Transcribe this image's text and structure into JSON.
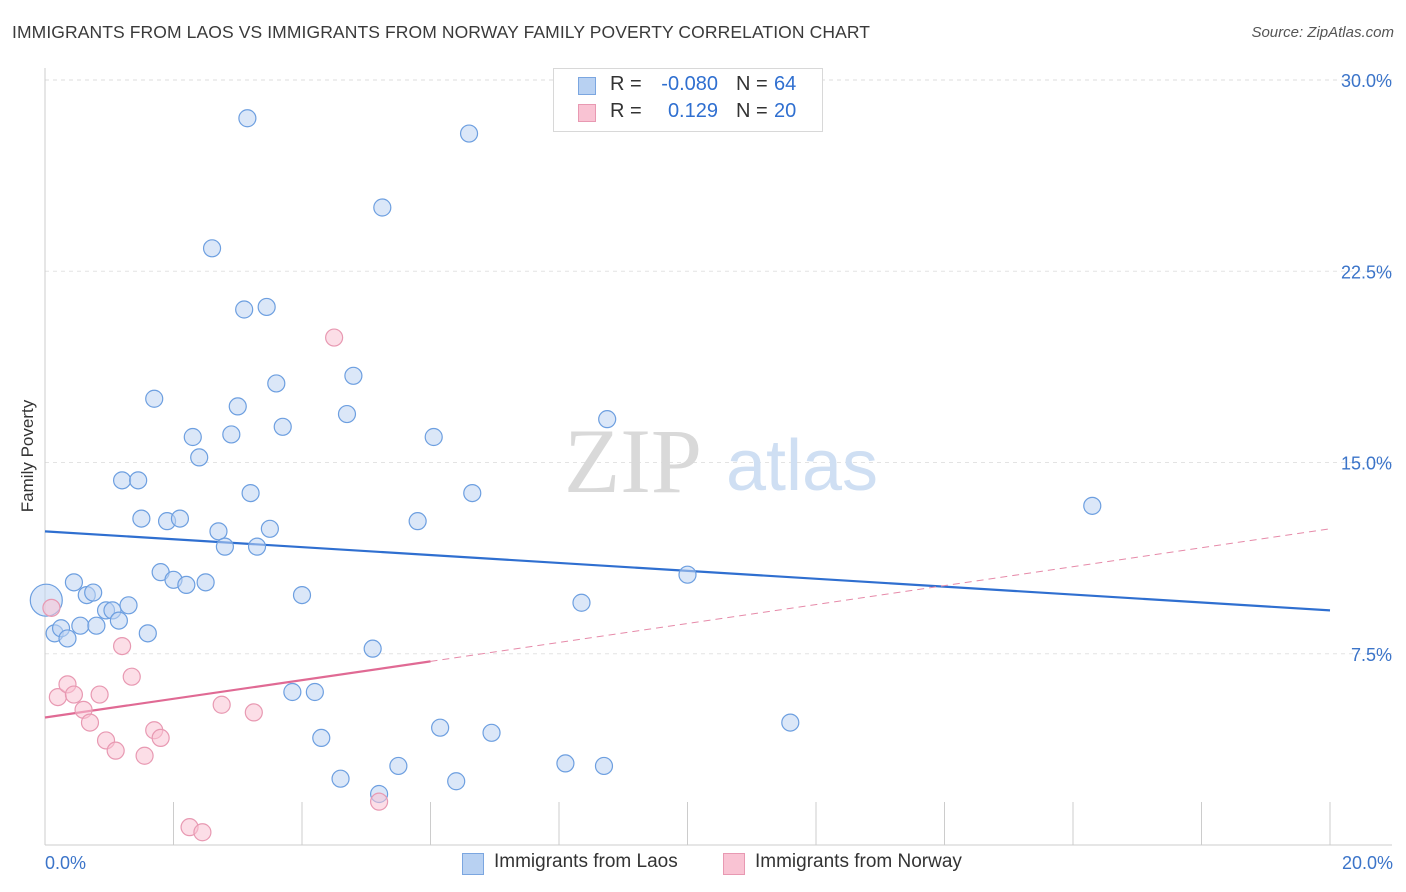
{
  "header": {
    "title": "IMMIGRANTS FROM LAOS VS IMMIGRANTS FROM NORWAY FAMILY POVERTY CORRELATION CHART",
    "source": "Source: ZipAtlas.com"
  },
  "watermark": {
    "zip": "ZIP",
    "atlas": "atlas"
  },
  "stats": [
    {
      "r_label": "R =",
      "r_value": "-0.080",
      "n_label": "N =",
      "n_value": "64",
      "color": "#b8d1f2",
      "border": "#7ba6e0"
    },
    {
      "r_label": "R =",
      "r_value": "0.129",
      "n_label": "N =",
      "n_value": "20",
      "color": "#f9c3d3",
      "border": "#e899b2"
    }
  ],
  "legend": [
    {
      "label": "Immigrants from Laos",
      "color": "#b8d1f2",
      "border": "#7ba6e0"
    },
    {
      "label": "Immigrants from Norway",
      "color": "#f9c3d3",
      "border": "#e899b2"
    }
  ],
  "chart_data": {
    "type": "scatter",
    "title": "IMMIGRANTS FROM LAOS VS IMMIGRANTS FROM NORWAY FAMILY POVERTY CORRELATION CHART",
    "xlabel": "",
    "ylabel": "Family Poverty",
    "xlim": [
      0,
      20
    ],
    "ylim": [
      0,
      30
    ],
    "x_tick_labels": [
      "0.0%",
      "20.0%"
    ],
    "y_ticks": [
      7.5,
      15.0,
      22.5,
      30.0
    ],
    "y_tick_labels": [
      "7.5%",
      "15.0%",
      "22.5%",
      "30.0%"
    ],
    "grid": true,
    "legend_position": "bottom",
    "series": [
      {
        "name": "Immigrants from Laos",
        "color": "#6d9fe0",
        "fill": "#bdd4f3",
        "trend": {
          "x": [
            0,
            20
          ],
          "y": [
            12.3,
            9.2
          ],
          "color": "#2f6fd0",
          "style": "solid"
        },
        "points": [
          [
            0.02,
            9.6,
            "big"
          ],
          [
            0.15,
            8.3
          ],
          [
            0.25,
            8.5
          ],
          [
            0.35,
            8.1
          ],
          [
            0.45,
            10.3
          ],
          [
            0.55,
            8.6
          ],
          [
            0.65,
            9.8
          ],
          [
            0.75,
            9.9
          ],
          [
            0.8,
            8.6
          ],
          [
            0.95,
            9.2
          ],
          [
            1.05,
            9.2
          ],
          [
            1.15,
            8.8
          ],
          [
            1.3,
            9.4
          ],
          [
            1.6,
            8.3
          ],
          [
            1.2,
            14.3
          ],
          [
            1.45,
            14.3
          ],
          [
            1.5,
            12.8
          ],
          [
            1.7,
            17.5
          ],
          [
            1.8,
            10.7
          ],
          [
            1.9,
            12.7
          ],
          [
            2.0,
            10.4
          ],
          [
            2.1,
            12.8
          ],
          [
            2.2,
            10.2
          ],
          [
            2.3,
            16.0
          ],
          [
            2.4,
            15.2
          ],
          [
            2.5,
            10.3
          ],
          [
            2.6,
            23.4
          ],
          [
            2.7,
            12.3
          ],
          [
            2.8,
            11.7
          ],
          [
            2.9,
            16.1
          ],
          [
            3.0,
            17.2
          ],
          [
            3.1,
            21.0
          ],
          [
            3.15,
            28.5
          ],
          [
            3.2,
            13.8
          ],
          [
            3.3,
            11.7
          ],
          [
            3.45,
            21.1
          ],
          [
            3.5,
            12.4
          ],
          [
            3.6,
            18.1
          ],
          [
            3.7,
            16.4
          ],
          [
            3.85,
            6.0
          ],
          [
            4.0,
            9.8
          ],
          [
            4.2,
            6.0
          ],
          [
            4.3,
            4.2
          ],
          [
            4.6,
            2.6
          ],
          [
            4.7,
            16.9
          ],
          [
            4.8,
            18.4
          ],
          [
            5.1,
            7.7
          ],
          [
            5.2,
            2.0
          ],
          [
            5.25,
            25.0
          ],
          [
            5.5,
            3.1
          ],
          [
            5.8,
            12.7
          ],
          [
            6.05,
            16.0
          ],
          [
            6.15,
            4.6
          ],
          [
            6.4,
            2.5
          ],
          [
            6.6,
            27.9
          ],
          [
            6.65,
            13.8
          ],
          [
            6.95,
            4.4
          ],
          [
            8.1,
            3.2
          ],
          [
            8.35,
            9.5
          ],
          [
            8.7,
            3.1
          ],
          [
            8.75,
            16.7
          ],
          [
            10.0,
            10.6
          ],
          [
            11.6,
            4.8
          ],
          [
            16.3,
            13.3
          ]
        ]
      },
      {
        "name": "Immigrants from Norway",
        "color": "#e899b2",
        "fill": "#f9c3d3",
        "trend": {
          "x": [
            0,
            6.0
          ],
          "y": [
            5.0,
            7.2
          ],
          "color": "#e06a94",
          "style": "solid"
        },
        "trend_extension": {
          "x": [
            6.0,
            20
          ],
          "y": [
            7.2,
            12.4
          ],
          "color": "#e68aa9",
          "style": "dashed"
        },
        "points": [
          [
            0.1,
            9.3
          ],
          [
            0.2,
            5.8
          ],
          [
            0.35,
            6.3
          ],
          [
            0.45,
            5.9
          ],
          [
            0.6,
            5.3
          ],
          [
            0.7,
            4.8
          ],
          [
            0.85,
            5.9
          ],
          [
            0.95,
            4.1
          ],
          [
            1.1,
            3.7
          ],
          [
            1.2,
            7.8
          ],
          [
            1.35,
            6.6
          ],
          [
            1.55,
            3.5
          ],
          [
            1.7,
            4.5
          ],
          [
            1.8,
            4.2
          ],
          [
            2.25,
            0.7
          ],
          [
            2.45,
            0.5
          ],
          [
            2.75,
            5.5
          ],
          [
            3.25,
            5.2
          ],
          [
            4.5,
            19.9
          ],
          [
            5.2,
            1.7
          ]
        ]
      }
    ]
  }
}
